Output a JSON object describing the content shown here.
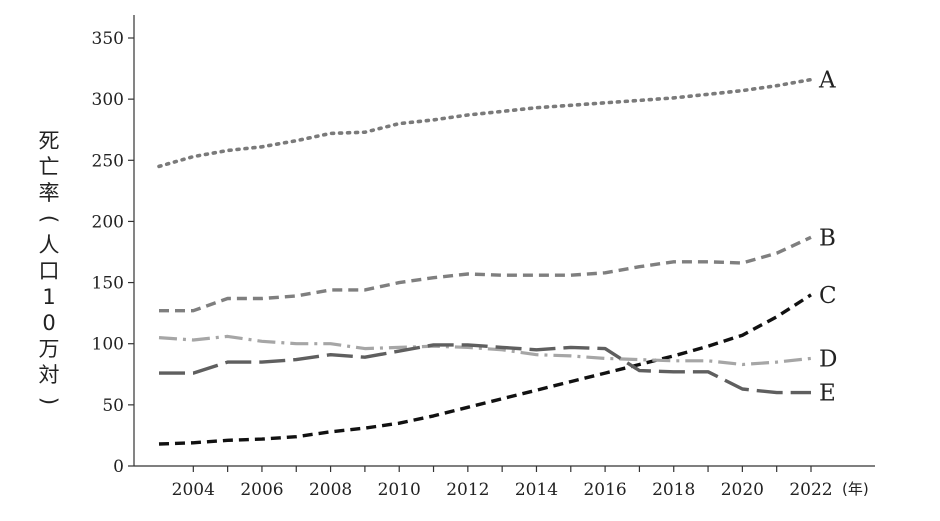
{
  "chart_data": {
    "type": "line",
    "title": "",
    "xlabel": "",
    "x_unit": "(年)",
    "ylabel": "死亡率(人口10万対)",
    "xlim": [
      2003,
      2022
    ],
    "ylim": [
      0,
      350
    ],
    "xticks": [
      2004,
      2006,
      2008,
      2010,
      2012,
      2014,
      2016,
      2018,
      2020,
      2022
    ],
    "yticks": [
      0,
      50,
      100,
      150,
      200,
      250,
      300,
      350
    ],
    "grid": false,
    "legend": "inline labels at right end of each line",
    "x": [
      2003,
      2004,
      2005,
      2006,
      2007,
      2008,
      2009,
      2010,
      2011,
      2012,
      2013,
      2014,
      2015,
      2016,
      2017,
      2018,
      2019,
      2020,
      2021,
      2022
    ],
    "series": [
      {
        "name": "A",
        "style": "dotted",
        "color": "#7a7a7a",
        "values": [
          245,
          253,
          258,
          261,
          266,
          272,
          273,
          280,
          283,
          287,
          290,
          293,
          295,
          297,
          299,
          301,
          304,
          307,
          311,
          316
        ]
      },
      {
        "name": "B",
        "style": "dashed",
        "color": "#7f7f7f",
        "values": [
          127,
          127,
          137,
          137,
          139,
          144,
          144,
          150,
          154,
          157,
          156,
          156,
          156,
          158,
          163,
          167,
          167,
          166,
          174,
          187
        ]
      },
      {
        "name": "C",
        "style": "dashed",
        "color": "#111111",
        "values": [
          18,
          19,
          21,
          22,
          24,
          28,
          31,
          35,
          41,
          48,
          55,
          62,
          69,
          76,
          83,
          90,
          98,
          107,
          122,
          140
        ]
      },
      {
        "name": "D",
        "style": "dashdot",
        "color": "#a6a6a6",
        "values": [
          105,
          103,
          106,
          102,
          100,
          100,
          96,
          97,
          98,
          97,
          95,
          91,
          90,
          88,
          87,
          86,
          86,
          83,
          85,
          88
        ]
      },
      {
        "name": "E",
        "style": "longdash",
        "color": "#5f5f5f",
        "values": [
          76,
          76,
          85,
          85,
          87,
          91,
          89,
          94,
          99,
          99,
          97,
          95,
          97,
          96,
          78,
          77,
          77,
          63,
          60,
          60
        ]
      }
    ]
  }
}
